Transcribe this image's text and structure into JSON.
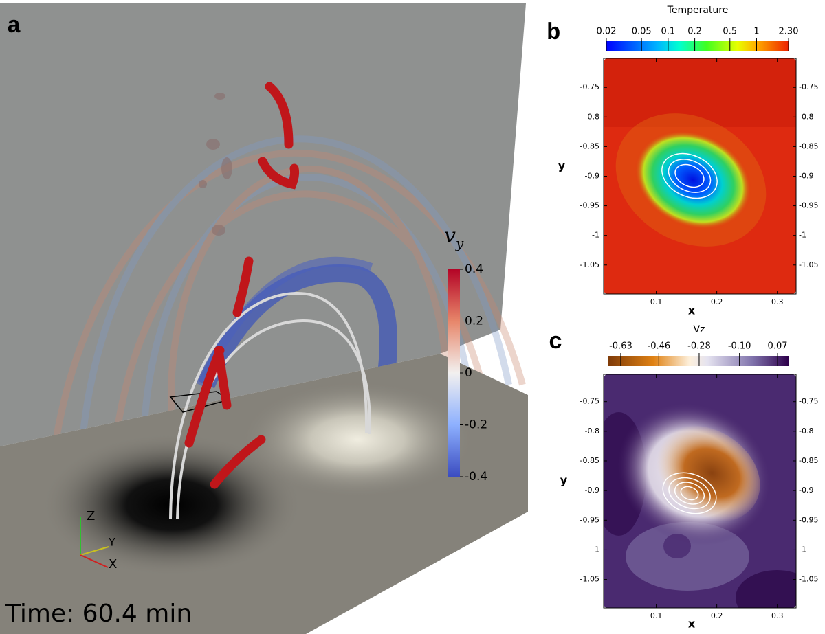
{
  "panel_a": {
    "label": "a",
    "time": "Time: 60.4 min",
    "colorbar": {
      "title": "v",
      "title_sub": "y",
      "range": [
        -0.4,
        0.4
      ],
      "ticks": [
        0.4,
        0.2,
        0,
        -0.2,
        -0.4
      ]
    },
    "axes": [
      "Z",
      "Y",
      "X"
    ]
  },
  "panel_b": {
    "label": "b",
    "colorbar": {
      "title": "Temperature",
      "scale": "log",
      "range": [
        0.02,
        2.3
      ],
      "ticks": [
        0.02,
        0.05,
        0.1,
        0.2,
        0.5,
        1,
        {
          "value": 2.3,
          "label": "2.30"
        }
      ]
    },
    "xlabel": "x",
    "ylabel": "y",
    "xlim": [
      0.013,
      0.331
    ],
    "xticks": [
      0.1,
      0.2,
      0.3
    ],
    "ylim": [
      -1.099,
      -0.701
    ],
    "yticks": [
      -0.75,
      -0.8,
      -0.85,
      -0.9,
      -0.95,
      -1,
      -1.05
    ]
  },
  "panel_c": {
    "label": "c",
    "colorbar": {
      "title": "Vz",
      "scale": "linear",
      "range": [
        -0.685,
        0.119
      ],
      "ticks": [
        -0.63,
        -0.46,
        -0.28,
        {
          "value": -0.1,
          "label": "-0.10"
        },
        0.07
      ]
    },
    "xlabel": "x",
    "ylabel": "y",
    "xlim": [
      0.013,
      0.331
    ],
    "xticks": [
      0.1,
      0.2,
      0.3
    ],
    "ylim": [
      -1.098,
      -0.704
    ],
    "yticks": [
      -0.75,
      -0.8,
      -0.85,
      -0.9,
      -0.95,
      -1,
      -1.05
    ]
  }
}
